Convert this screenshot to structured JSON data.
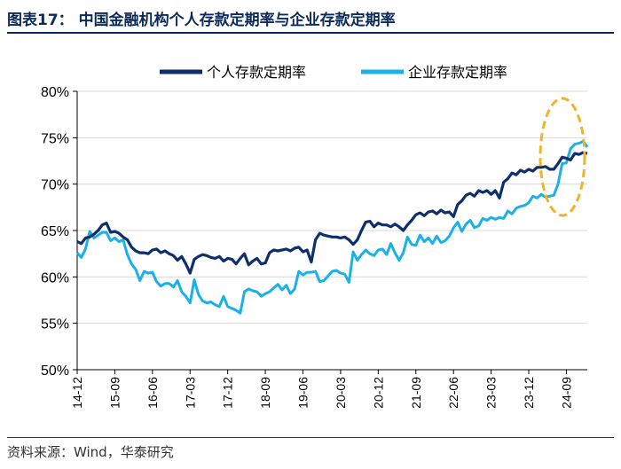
{
  "figure": {
    "title": "图表17：  中国金融机构个人存款定期率与企业存款定期率",
    "source": "资料来源：Wind，华泰研究"
  },
  "chart_data": {
    "type": "line",
    "ylim": [
      50,
      80
    ],
    "yticks": [
      50,
      55,
      60,
      65,
      70,
      75,
      80
    ],
    "ytick_labels": [
      "50%",
      "55%",
      "60%",
      "65%",
      "70%",
      "75%",
      "80%"
    ],
    "x_range": [
      0,
      122
    ],
    "xticks": [
      0,
      9,
      18,
      27,
      36,
      45,
      54,
      63,
      72,
      81,
      90,
      99,
      108,
      117
    ],
    "xtick_labels": [
      "14-12",
      "15-09",
      "16-06",
      "17-03",
      "17-12",
      "18-09",
      "19-06",
      "20-03",
      "20-12",
      "21-09",
      "22-06",
      "23-03",
      "23-12",
      "24-09"
    ],
    "x_note": "monthly index, 0 = 2014-12",
    "legend": [
      "个人存款定期率",
      "企业存款定期率"
    ],
    "colors": {
      "personal": "#0d2f6b",
      "corporate": "#1ab0e8",
      "highlight": "#f0b429"
    },
    "series": [
      {
        "name": "个人存款定期率",
        "values": [
          63.8,
          63.6,
          64.2,
          64.3,
          64.6,
          65.0,
          65.6,
          65.8,
          64.8,
          64.9,
          64.7,
          64.3,
          64.0,
          63.2,
          62.8,
          62.6,
          62.6,
          62.5,
          62.9,
          63.0,
          62.6,
          62.8,
          62.5,
          62.3,
          61.8,
          62.2,
          61.4,
          60.4,
          61.9,
          62.2,
          62.4,
          62.3,
          62.1,
          62.0,
          62.2,
          61.7,
          62.0,
          61.9,
          61.4,
          62.0,
          62.5,
          61.3,
          61.7,
          62.0,
          61.4,
          61.5,
          62.6,
          62.9,
          62.8,
          62.9,
          63.0,
          62.8,
          63.1,
          63.2,
          62.7,
          62.9,
          61.6,
          64.0,
          64.7,
          64.5,
          64.4,
          64.3,
          64.3,
          64.2,
          64.3,
          64.0,
          63.5,
          64.0,
          65.0,
          65.9,
          66.0,
          65.4,
          65.8,
          65.6,
          65.6,
          65.4,
          65.7,
          65.4,
          65.0,
          65.6,
          66.1,
          66.7,
          66.9,
          66.6,
          67.0,
          67.1,
          66.8,
          67.2,
          66.9,
          67.0,
          66.5,
          67.8,
          68.2,
          68.8,
          69.0,
          68.7,
          69.3,
          69.1,
          69.3,
          68.9,
          69.3,
          68.5,
          70.2,
          70.6,
          71.2,
          71.0,
          71.5,
          71.3,
          71.6,
          71.4,
          71.8,
          71.8,
          71.9,
          71.6,
          71.6,
          72.2,
          72.9,
          72.8,
          72.6,
          73.3,
          73.2,
          73.4,
          73.3
        ]
      },
      {
        "name": "企业存款定期率",
        "values": [
          62.6,
          62.1,
          63.0,
          64.9,
          64.2,
          64.5,
          64.8,
          64.8,
          63.9,
          64.2,
          63.8,
          64.0,
          62.4,
          61.4,
          60.8,
          59.6,
          60.6,
          60.4,
          60.5,
          59.5,
          59.0,
          59.3,
          59.3,
          58.9,
          59.6,
          58.4,
          57.9,
          57.2,
          59.7,
          58.1,
          57.4,
          57.2,
          57.3,
          57.0,
          56.8,
          57.9,
          56.8,
          56.6,
          56.4,
          56.1,
          58.4,
          58.7,
          58.5,
          58.4,
          57.9,
          58.2,
          58.4,
          58.8,
          59.2,
          58.6,
          59.1,
          58.2,
          58.7,
          60.6,
          60.2,
          60.5,
          60.5,
          60.6,
          59.5,
          59.6,
          60.1,
          60.6,
          60.7,
          60.4,
          60.3,
          59.4,
          62.7,
          61.8,
          62.4,
          62.9,
          62.5,
          62.3,
          62.9,
          63.0,
          62.4,
          63.6,
          62.6,
          61.8,
          62.6,
          64.3,
          63.5,
          63.4,
          64.5,
          63.8,
          64.2,
          63.6,
          64.4,
          63.7,
          63.9,
          64.4,
          65.3,
          65.9,
          64.9,
          65.7,
          66.1,
          65.3,
          65.5,
          66.3,
          66.1,
          66.4,
          66.2,
          66.4,
          66.3,
          67.1,
          66.8,
          67.4,
          67.6,
          67.7,
          68.0,
          68.7,
          68.5,
          68.9,
          68.6,
          68.7,
          68.8,
          70.0,
          72.2,
          72.3,
          73.8,
          74.3,
          74.4,
          74.6,
          74.0
        ]
      }
    ],
    "annotation": "dashed ellipse highlighting the latest rise (2024)"
  }
}
